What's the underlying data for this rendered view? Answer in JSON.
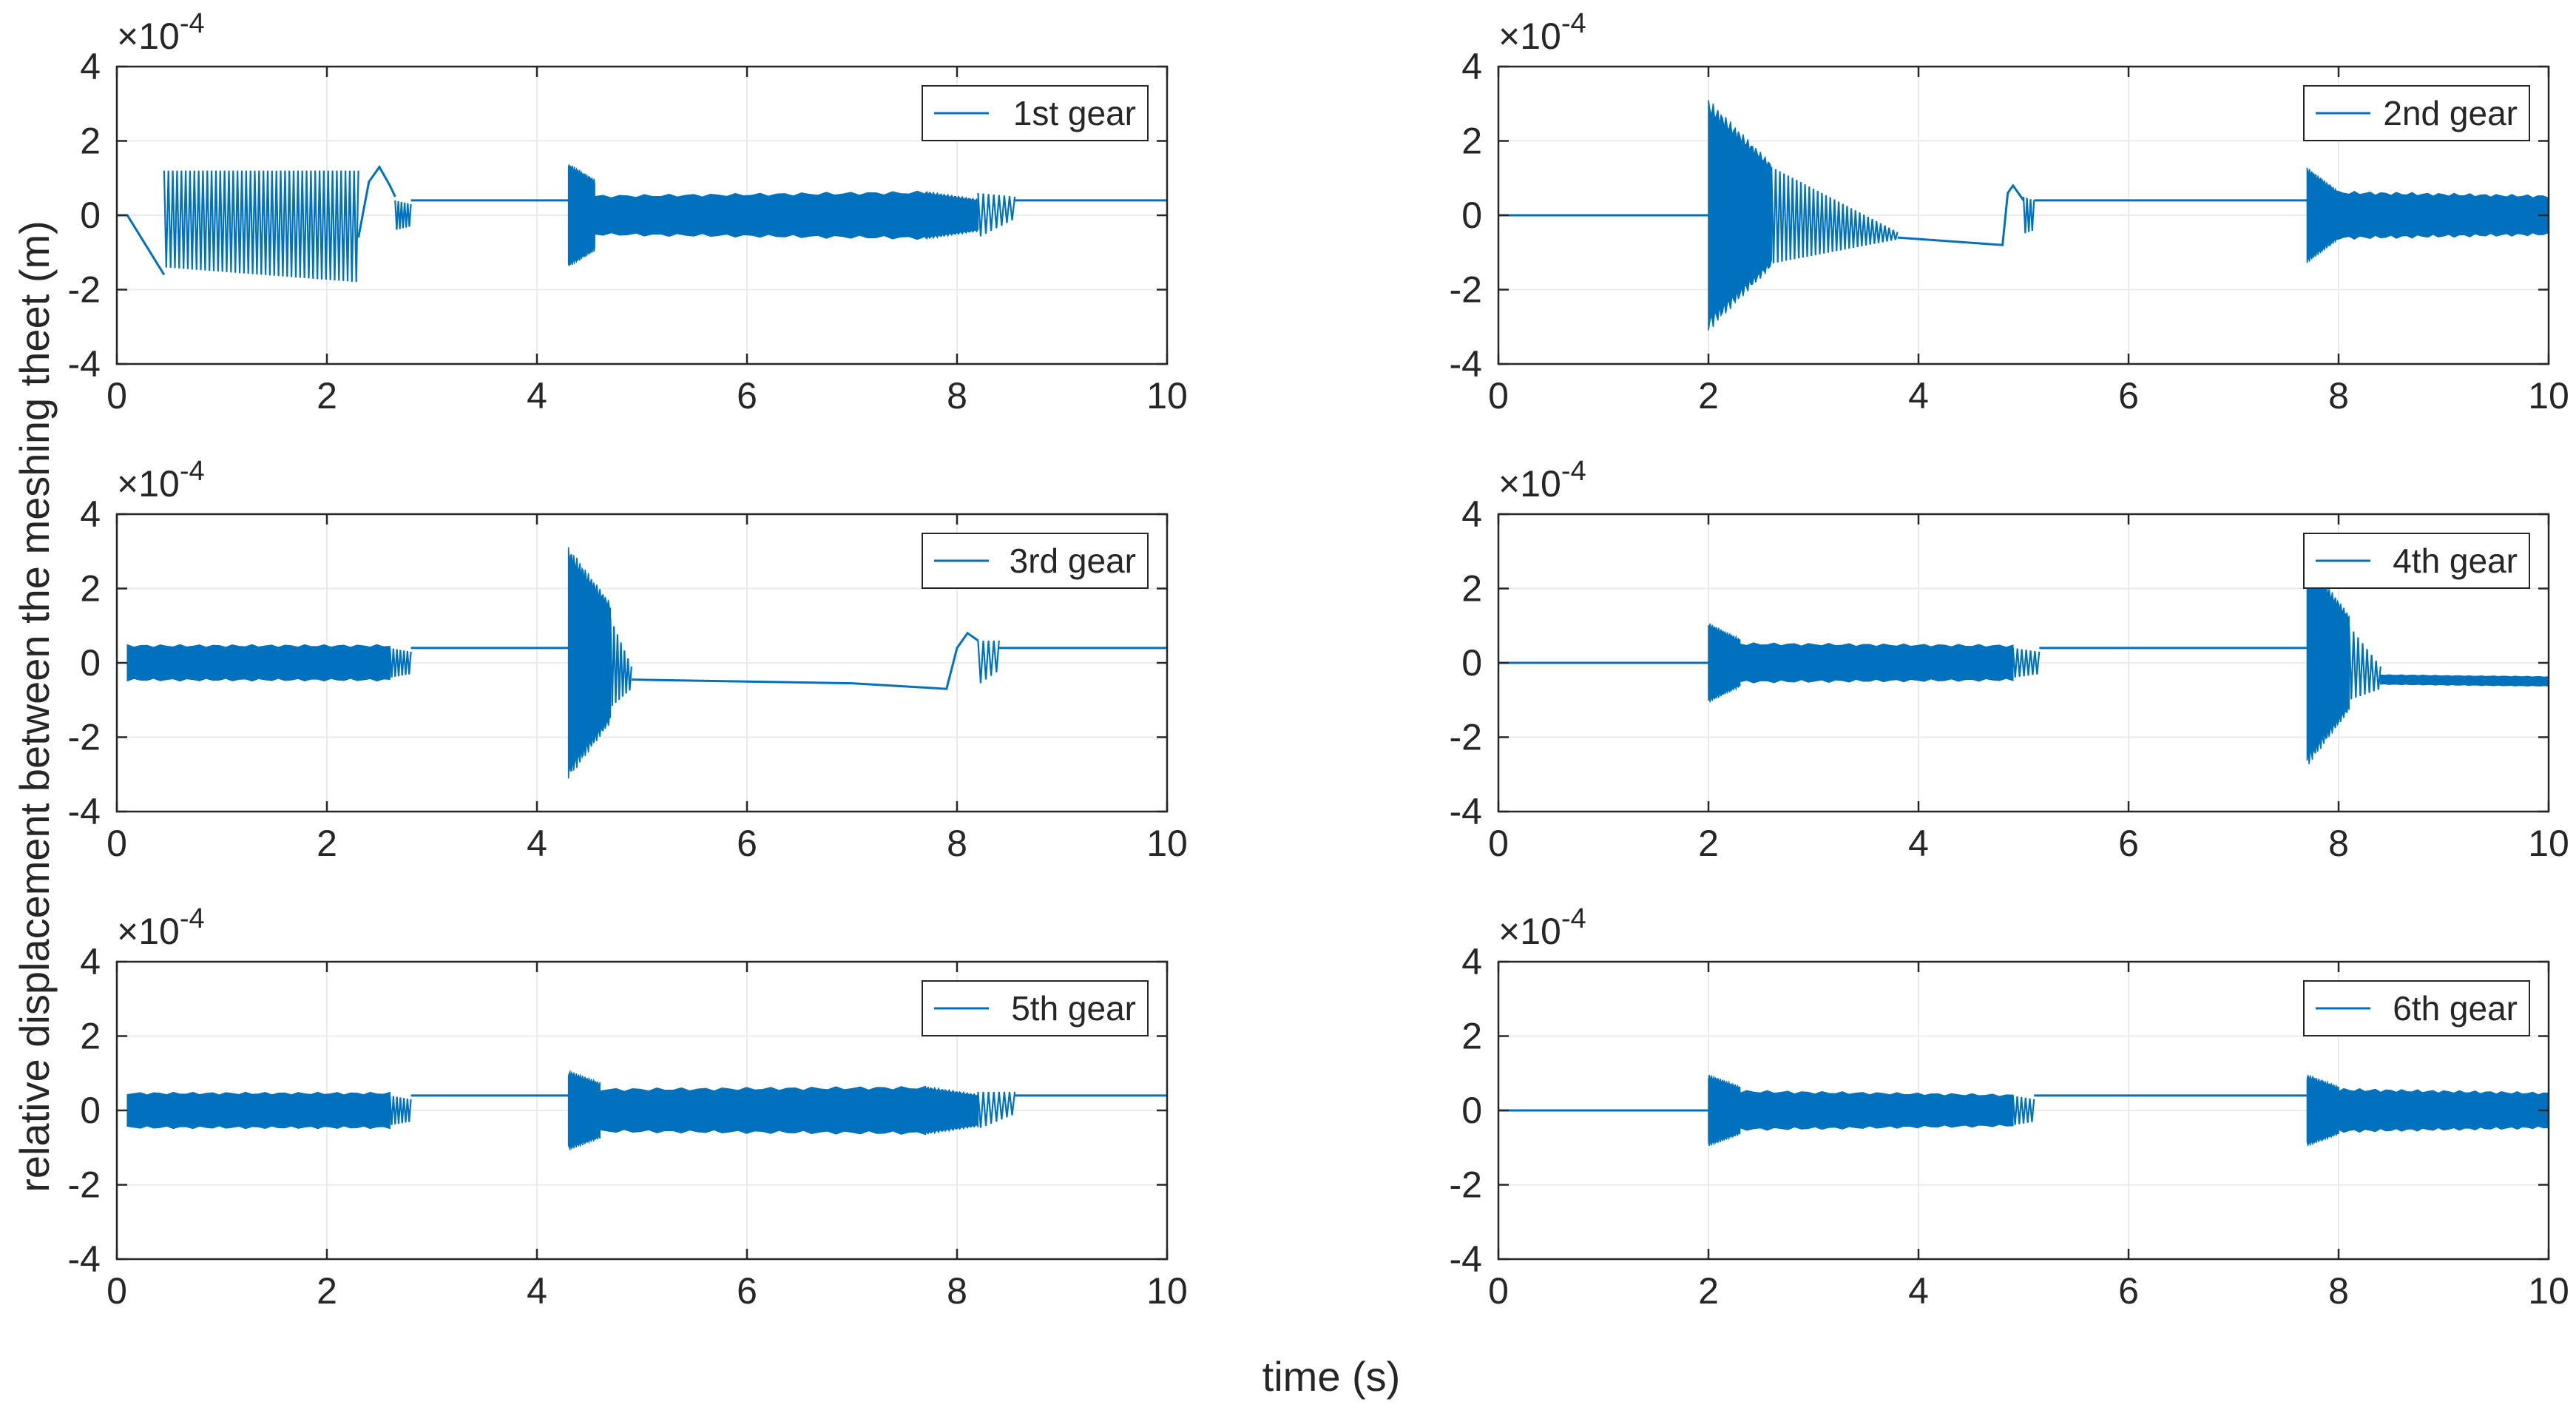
{
  "colors": {
    "series": "#0072bd",
    "axis": "#262626",
    "grid": "#ebebeb",
    "legend_border": "#262626",
    "background": "#ffffff"
  },
  "figure": {
    "ylabel": "relative displacement between the meshing theet (m)",
    "xlabel": "time (s)"
  },
  "chart_data": [
    {
      "type": "line",
      "legend": "1st gear",
      "legend_position": "top-right",
      "grid": true,
      "xlim": [
        0,
        10
      ],
      "ylim": [
        -4,
        4
      ],
      "y_multiplier": "×10^-4",
      "xticks": [
        0,
        2,
        4,
        6,
        8,
        10
      ],
      "yticks": [
        -4,
        -2,
        0,
        2,
        4
      ],
      "segments": [
        {
          "kind": "line",
          "points": [
            [
              0,
              0
            ],
            [
              0.1,
              0
            ],
            [
              0.45,
              -1.6
            ]
          ]
        },
        {
          "kind": "oscillation",
          "t0": 0.45,
          "t1": 2.3,
          "center": [
            -0.1,
            -0.3
          ],
          "amp": [
            1.3,
            1.5
          ],
          "cycles": 45
        },
        {
          "kind": "line",
          "points": [
            [
              2.3,
              -0.6
            ],
            [
              2.4,
              0.9
            ],
            [
              2.5,
              1.3
            ],
            [
              2.6,
              0.8
            ],
            [
              2.65,
              0.5
            ]
          ]
        },
        {
          "kind": "oscillation",
          "t0": 2.65,
          "t1": 2.8,
          "center": [
            0,
            0
          ],
          "amp": [
            0.4,
            0.3
          ],
          "cycles": 5
        },
        {
          "kind": "line",
          "points": [
            [
              2.8,
              0.4
            ],
            [
              4.3,
              0.4
            ]
          ]
        },
        {
          "kind": "band",
          "t0": 4.3,
          "t1": 4.55,
          "center": [
            0,
            0
          ],
          "amp": [
            1.3,
            0.9
          ]
        },
        {
          "kind": "band",
          "t0": 4.55,
          "t1": 7.7,
          "center": [
            0,
            0
          ],
          "amp": [
            0.5,
            0.6
          ]
        },
        {
          "kind": "band",
          "t0": 7.7,
          "t1": 8.2,
          "center": [
            0,
            0
          ],
          "amp": [
            0.6,
            0.4
          ]
        },
        {
          "kind": "oscillation",
          "t0": 8.2,
          "t1": 8.55,
          "center": [
            0,
            0.2
          ],
          "amp": [
            0.6,
            0.3
          ],
          "cycles": 7
        },
        {
          "kind": "line",
          "points": [
            [
              8.55,
              0.4
            ],
            [
              10,
              0.4
            ]
          ]
        }
      ]
    },
    {
      "type": "line",
      "legend": "2nd gear",
      "legend_position": "top-right",
      "grid": true,
      "xlim": [
        0,
        10
      ],
      "ylim": [
        -4,
        4
      ],
      "y_multiplier": "×10^-4",
      "xticks": [
        0,
        2,
        4,
        6,
        8,
        10
      ],
      "yticks": [
        -4,
        -2,
        0,
        2,
        4
      ],
      "segments": [
        {
          "kind": "line",
          "points": [
            [
              0,
              0
            ],
            [
              2.0,
              0
            ]
          ]
        },
        {
          "kind": "band",
          "t0": 2.0,
          "t1": 2.6,
          "center": [
            0,
            0
          ],
          "amp": [
            2.9,
            1.3
          ]
        },
        {
          "kind": "oscillation",
          "t0": 2.6,
          "t1": 3.8,
          "center": [
            0,
            -0.55
          ],
          "amp": [
            1.3,
            0.1
          ],
          "cycles": 30
        },
        {
          "kind": "line",
          "points": [
            [
              3.8,
              -0.6
            ],
            [
              4.8,
              -0.8
            ],
            [
              4.85,
              0.6
            ],
            [
              4.9,
              0.8
            ],
            [
              5.0,
              0.4
            ]
          ]
        },
        {
          "kind": "oscillation",
          "t0": 5.0,
          "t1": 5.1,
          "center": [
            0,
            0
          ],
          "amp": [
            0.5,
            0.4
          ],
          "cycles": 3
        },
        {
          "kind": "line",
          "points": [
            [
              5.1,
              0.4
            ],
            [
              7.7,
              0.4
            ]
          ]
        },
        {
          "kind": "band",
          "t0": 7.7,
          "t1": 8.0,
          "center": [
            0,
            0
          ],
          "amp": [
            1.2,
            0.6
          ]
        },
        {
          "kind": "band",
          "t0": 8.0,
          "t1": 10,
          "center": [
            0,
            0
          ],
          "amp": [
            0.6,
            0.5
          ]
        }
      ]
    },
    {
      "type": "line",
      "legend": "3rd gear",
      "legend_position": "top-right",
      "grid": true,
      "xlim": [
        0,
        10
      ],
      "ylim": [
        -4,
        4
      ],
      "y_multiplier": "×10^-4",
      "xticks": [
        0,
        2,
        4,
        6,
        8,
        10
      ],
      "yticks": [
        -4,
        -2,
        0,
        2,
        4
      ],
      "segments": [
        {
          "kind": "band",
          "t0": 0.1,
          "t1": 2.6,
          "center": [
            0,
            0
          ],
          "amp": [
            0.45,
            0.45
          ]
        },
        {
          "kind": "oscillation",
          "t0": 2.6,
          "t1": 2.8,
          "center": [
            0,
            0
          ],
          "amp": [
            0.4,
            0.3
          ],
          "cycles": 6
        },
        {
          "kind": "line",
          "points": [
            [
              2.8,
              0.4
            ],
            [
              4.3,
              0.4
            ]
          ]
        },
        {
          "kind": "band",
          "t0": 4.3,
          "t1": 4.7,
          "center": [
            0,
            0
          ],
          "amp": [
            2.9,
            1.5
          ]
        },
        {
          "kind": "oscillation",
          "t0": 4.7,
          "t1": 4.9,
          "center": [
            0,
            -0.4
          ],
          "amp": [
            1.2,
            0.3
          ],
          "cycles": 6
        },
        {
          "kind": "line",
          "points": [
            [
              4.9,
              -0.45
            ],
            [
              7.0,
              -0.55
            ],
            [
              7.9,
              -0.7
            ],
            [
              8.0,
              0.4
            ],
            [
              8.1,
              0.8
            ],
            [
              8.2,
              0.6
            ]
          ]
        },
        {
          "kind": "oscillation",
          "t0": 8.2,
          "t1": 8.4,
          "center": [
            0,
            0.2
          ],
          "amp": [
            0.6,
            0.4
          ],
          "cycles": 4
        },
        {
          "kind": "line",
          "points": [
            [
              8.4,
              0.4
            ],
            [
              10,
              0.4
            ]
          ]
        }
      ]
    },
    {
      "type": "line",
      "legend": "4th gear",
      "legend_position": "top-right",
      "grid": true,
      "xlim": [
        0,
        10
      ],
      "ylim": [
        -4,
        4
      ],
      "y_multiplier": "×10^-4",
      "xticks": [
        0,
        2,
        4,
        6,
        8,
        10
      ],
      "yticks": [
        -4,
        -2,
        0,
        2,
        4
      ],
      "segments": [
        {
          "kind": "line",
          "points": [
            [
              0,
              0
            ],
            [
              2.0,
              0
            ]
          ]
        },
        {
          "kind": "band",
          "t0": 2.0,
          "t1": 2.3,
          "center": [
            0,
            0
          ],
          "amp": [
            1.0,
            0.6
          ]
        },
        {
          "kind": "band",
          "t0": 2.3,
          "t1": 4.9,
          "center": [
            0,
            0
          ],
          "amp": [
            0.5,
            0.45
          ]
        },
        {
          "kind": "oscillation",
          "t0": 4.9,
          "t1": 5.15,
          "center": [
            0,
            0
          ],
          "amp": [
            0.4,
            0.3
          ],
          "cycles": 6
        },
        {
          "kind": "line",
          "points": [
            [
              5.15,
              0.4
            ],
            [
              7.7,
              0.4
            ]
          ]
        },
        {
          "kind": "band",
          "t0": 7.7,
          "t1": 8.1,
          "center": [
            0,
            0
          ],
          "amp": [
            2.6,
            1.2
          ]
        },
        {
          "kind": "oscillation",
          "t0": 8.1,
          "t1": 8.4,
          "center": [
            0,
            -0.4
          ],
          "amp": [
            1.0,
            0.3
          ],
          "cycles": 7
        },
        {
          "kind": "band",
          "t0": 8.4,
          "t1": 10,
          "center": [
            -0.45,
            -0.5
          ],
          "amp": [
            0.12,
            0.12
          ]
        }
      ]
    },
    {
      "type": "line",
      "legend": "5th gear",
      "legend_position": "top-right",
      "grid": true,
      "xlim": [
        0,
        10
      ],
      "ylim": [
        -4,
        4
      ],
      "y_multiplier": "×10^-4",
      "xticks": [
        0,
        2,
        4,
        6,
        8,
        10
      ],
      "yticks": [
        -4,
        -2,
        0,
        2,
        4
      ],
      "segments": [
        {
          "kind": "band",
          "t0": 0.1,
          "t1": 2.6,
          "center": [
            0,
            0
          ],
          "amp": [
            0.45,
            0.45
          ]
        },
        {
          "kind": "oscillation",
          "t0": 2.6,
          "t1": 2.8,
          "center": [
            0,
            0
          ],
          "amp": [
            0.4,
            0.3
          ],
          "cycles": 6
        },
        {
          "kind": "line",
          "points": [
            [
              2.8,
              0.4
            ],
            [
              4.3,
              0.4
            ]
          ]
        },
        {
          "kind": "band",
          "t0": 4.3,
          "t1": 4.6,
          "center": [
            0,
            0
          ],
          "amp": [
            1.0,
            0.7
          ]
        },
        {
          "kind": "band",
          "t0": 4.6,
          "t1": 7.7,
          "center": [
            0,
            0
          ],
          "amp": [
            0.55,
            0.6
          ]
        },
        {
          "kind": "band",
          "t0": 7.7,
          "t1": 8.2,
          "center": [
            0,
            0
          ],
          "amp": [
            0.6,
            0.4
          ]
        },
        {
          "kind": "oscillation",
          "t0": 8.2,
          "t1": 8.55,
          "center": [
            0,
            0.2
          ],
          "amp": [
            0.5,
            0.3
          ],
          "cycles": 7
        },
        {
          "kind": "line",
          "points": [
            [
              8.55,
              0.4
            ],
            [
              10,
              0.4
            ]
          ]
        }
      ]
    },
    {
      "type": "line",
      "legend": "6th gear",
      "legend_position": "top-right",
      "grid": true,
      "xlim": [
        0,
        10
      ],
      "ylim": [
        -4,
        4
      ],
      "y_multiplier": "×10^-4",
      "xticks": [
        0,
        2,
        4,
        6,
        8,
        10
      ],
      "yticks": [
        -4,
        -2,
        0,
        2,
        4
      ],
      "segments": [
        {
          "kind": "line",
          "points": [
            [
              0,
              0
            ],
            [
              2.0,
              0
            ]
          ]
        },
        {
          "kind": "band",
          "t0": 2.0,
          "t1": 2.3,
          "center": [
            0,
            0
          ],
          "amp": [
            0.9,
            0.6
          ]
        },
        {
          "kind": "band",
          "t0": 2.3,
          "t1": 4.9,
          "center": [
            0,
            0
          ],
          "amp": [
            0.5,
            0.4
          ]
        },
        {
          "kind": "oscillation",
          "t0": 4.9,
          "t1": 5.1,
          "center": [
            0,
            0
          ],
          "amp": [
            0.4,
            0.3
          ],
          "cycles": 5
        },
        {
          "kind": "line",
          "points": [
            [
              5.1,
              0.4
            ],
            [
              7.7,
              0.4
            ]
          ]
        },
        {
          "kind": "band",
          "t0": 7.7,
          "t1": 8.0,
          "center": [
            0,
            0
          ],
          "amp": [
            0.9,
            0.6
          ]
        },
        {
          "kind": "band",
          "t0": 8.0,
          "t1": 10,
          "center": [
            0,
            0
          ],
          "amp": [
            0.55,
            0.45
          ]
        }
      ]
    }
  ]
}
